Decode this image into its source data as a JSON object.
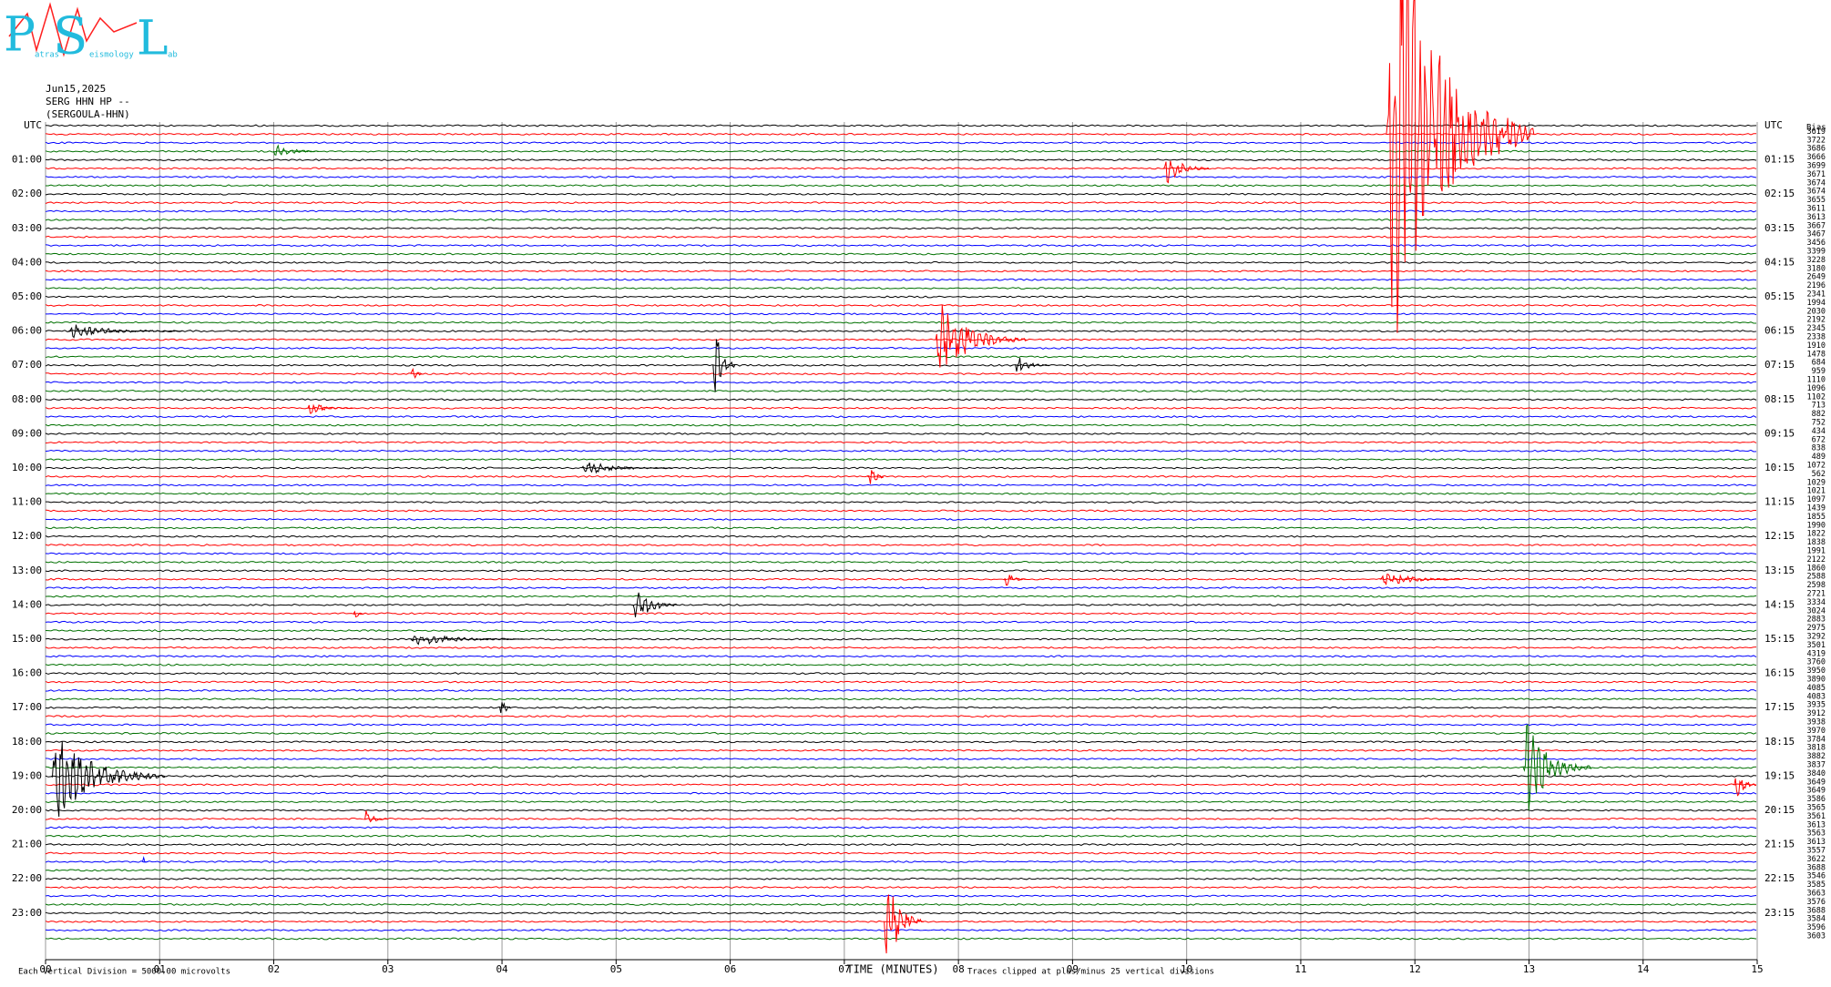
{
  "chart_data": {
    "type": "helicorder",
    "logo": {
      "letters": [
        "P",
        "S",
        "L"
      ],
      "words": [
        "atras",
        "eismology",
        "ab"
      ]
    },
    "date": "Jun15,2025",
    "station": "SERG HHN HP --",
    "station_name": "(SERGOULA-HHN)",
    "left_labels": [
      "UTC",
      "01:00",
      "02:00",
      "03:00",
      "04:00",
      "05:00",
      "06:00",
      "07:00",
      "08:00",
      "09:00",
      "10:00",
      "11:00",
      "12:00",
      "13:00",
      "14:00",
      "15:00",
      "16:00",
      "17:00",
      "18:00",
      "19:00",
      "20:00",
      "21:00",
      "22:00",
      "23:00"
    ],
    "right_labels": [
      "UTC",
      "01:15",
      "02:15",
      "03:15",
      "04:15",
      "05:15",
      "06:15",
      "07:15",
      "08:15",
      "09:15",
      "10:15",
      "11:15",
      "12:15",
      "13:15",
      "14:15",
      "15:15",
      "16:15",
      "17:15",
      "18:15",
      "19:15",
      "20:15",
      "21:15",
      "22:15",
      "23:15"
    ],
    "bias_header": "Bias",
    "bias_values": [
      3619,
      3722,
      3686,
      3666,
      3699,
      3671,
      3674,
      3674,
      3655,
      3611,
      3613,
      3667,
      3467,
      3456,
      3399,
      3228,
      3180,
      2649,
      2196,
      2341,
      1994,
      2030,
      2192,
      2345,
      2338,
      1910,
      1478,
      684,
      959,
      1110,
      1096,
      1102,
      713,
      882,
      752,
      434,
      672,
      838,
      489,
      1072,
      562,
      1029,
      1021,
      1097,
      1439,
      1855,
      1990,
      1822,
      1838,
      1991,
      2122,
      1860,
      2588,
      2598,
      2721,
      3334,
      3024,
      2883,
      2975,
      3292,
      3501,
      4319,
      3760,
      3950,
      3890,
      4085,
      4083,
      3935,
      3912,
      3938,
      3970,
      3784,
      3818,
      3882,
      3837,
      3840,
      3649,
      3649,
      3586,
      3565,
      3561,
      3613,
      3563,
      3613,
      3557,
      3622,
      3688,
      3546,
      3585,
      3663,
      3576,
      3688,
      3584,
      3596,
      3603
    ],
    "trace_colors": [
      "#000000",
      "#ff0000",
      "#0000ff",
      "#007000"
    ],
    "xlim": [
      0,
      15
    ],
    "xticks": [
      {
        "value": 0,
        "label": "00"
      },
      {
        "value": 1,
        "label": "01"
      },
      {
        "value": 2,
        "label": "02"
      },
      {
        "value": 3,
        "label": "03"
      },
      {
        "value": 4,
        "label": "04"
      },
      {
        "value": 5,
        "label": "05"
      },
      {
        "value": 6,
        "label": "06"
      },
      {
        "value": 7,
        "label": "07"
      },
      {
        "value": 8,
        "label": "08"
      },
      {
        "value": 9,
        "label": "09"
      },
      10,
      11,
      12,
      13,
      14,
      15
    ],
    "xlabel": "TIME (MINUTES)",
    "scale_note": "Each Vertical Division = 5000.00 microvolts",
    "clip_note": "Traces clipped at plus/minus 25 vertical divisions",
    "events": [
      {
        "trace": 1,
        "minute": 11.75,
        "amplitude": 14,
        "duration": 1.3
      },
      {
        "trace": 3,
        "minute": 2.0,
        "amplitude": 0.5,
        "duration": 0.4
      },
      {
        "trace": 5,
        "minute": 9.8,
        "amplitude": 1,
        "duration": 0.4
      },
      {
        "trace": 24,
        "minute": 0.2,
        "amplitude": 0.4,
        "duration": 1.0
      },
      {
        "trace": 25,
        "minute": 7.8,
        "amplitude": 2.2,
        "duration": 0.8
      },
      {
        "trace": 28,
        "minute": 5.85,
        "amplitude": 3,
        "duration": 0.2
      },
      {
        "trace": 28,
        "minute": 8.5,
        "amplitude": 0.6,
        "duration": 0.3
      },
      {
        "trace": 29,
        "minute": 3.2,
        "amplitude": 0.8,
        "duration": 0.1
      },
      {
        "trace": 33,
        "minute": 2.3,
        "amplitude": 0.4,
        "duration": 0.4
      },
      {
        "trace": 40,
        "minute": 4.7,
        "amplitude": 0.4,
        "duration": 0.8
      },
      {
        "trace": 41,
        "minute": 7.2,
        "amplitude": 1.3,
        "duration": 0.15
      },
      {
        "trace": 53,
        "minute": 8.4,
        "amplitude": 0.5,
        "duration": 0.2
      },
      {
        "trace": 53,
        "minute": 11.7,
        "amplitude": 0.5,
        "duration": 0.7
      },
      {
        "trace": 56,
        "minute": 5.15,
        "amplitude": 1.2,
        "duration": 0.4
      },
      {
        "trace": 57,
        "minute": 2.7,
        "amplitude": 0.6,
        "duration": 0.1
      },
      {
        "trace": 60,
        "minute": 3.2,
        "amplitude": 0.4,
        "duration": 1.0
      },
      {
        "trace": 68,
        "minute": 3.98,
        "amplitude": 1.2,
        "duration": 0.1
      },
      {
        "trace": 75,
        "minute": 12.95,
        "amplitude": 2.8,
        "duration": 0.6
      },
      {
        "trace": 76,
        "minute": 0.05,
        "amplitude": 2.6,
        "duration": 1.0
      },
      {
        "trace": 77,
        "minute": 14.8,
        "amplitude": 1,
        "duration": 0.2
      },
      {
        "trace": 81,
        "minute": 2.8,
        "amplitude": 0.6,
        "duration": 0.2
      },
      {
        "trace": 86,
        "minute": 0.85,
        "amplitude": 0.6,
        "duration": 0.05
      },
      {
        "trace": 93,
        "minute": 7.35,
        "amplitude": 3,
        "duration": 0.35
      }
    ]
  }
}
